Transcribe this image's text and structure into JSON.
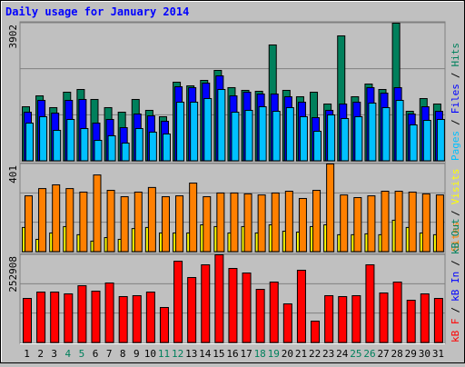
{
  "title": "Daily usage for January 2014",
  "separator": "/",
  "categories": [
    "1",
    "2",
    "3",
    "4",
    "5",
    "6",
    "7",
    "8",
    "9",
    "10",
    "11",
    "12",
    "13",
    "14",
    "15",
    "16",
    "17",
    "18",
    "19",
    "20",
    "21",
    "22",
    "23",
    "24",
    "25",
    "26",
    "27",
    "28",
    "29",
    "30",
    "31"
  ],
  "category_colors": [
    "#000000",
    "#000000",
    "#000000",
    "#00805c",
    "#00805c",
    "#000000",
    "#000000",
    "#000000",
    "#000000",
    "#000000",
    "#00805c",
    "#00805c",
    "#000000",
    "#000000",
    "#000000",
    "#000000",
    "#000000",
    "#00805c",
    "#00805c",
    "#000000",
    "#000000",
    "#000000",
    "#000000",
    "#000000",
    "#00805c",
    "#00805c",
    "#000000",
    "#000000",
    "#000000",
    "#000000",
    "#000000"
  ],
  "chart_data": [
    {
      "type": "bar",
      "ylim": [
        0,
        3902
      ],
      "yticks": [
        3902
      ],
      "grid": true,
      "series": [
        {
          "name": "Pages",
          "color": "#00c0ff",
          "values": [
            1078,
            1258,
            873,
            1181,
            924,
            590,
            719,
            513,
            924,
            822,
            770,
            1669,
            1669,
            1772,
            2028,
            1386,
            1438,
            1540,
            1412,
            1515,
            1258,
            847,
            1309,
            1207,
            1258,
            1643,
            1515,
            1720,
            1027,
            1155,
            1181
          ]
        },
        {
          "name": "Files",
          "color": "#0000ff",
          "values": [
            1386,
            1720,
            1360,
            1720,
            1746,
            1078,
            1181,
            950,
            1335,
            1284,
            1130,
            2105,
            2080,
            2208,
            2413,
            1848,
            1951,
            1900,
            1900,
            1823,
            1669,
            1232,
            1438,
            1617,
            1669,
            2080,
            1925,
            2080,
            1335,
            1540,
            1412
          ]
        },
        {
          "name": "Hits",
          "color": "#00805c",
          "values": [
            1540,
            1848,
            1515,
            1951,
            2028,
            1746,
            1515,
            1386,
            1746,
            1438,
            1258,
            2234,
            2131,
            2285,
            2567,
            2080,
            2003,
            1977,
            3286,
            2003,
            1823,
            1951,
            1617,
            3543,
            1823,
            2182,
            2028,
            3902,
            1412,
            1771,
            1617
          ]
        }
      ]
    },
    {
      "type": "bar",
      "ylim": [
        0,
        401
      ],
      "yticks": [
        401
      ],
      "grid": true,
      "series": [
        {
          "name": "Sites",
          "color": "#ff8000",
          "values": [
            256,
            289,
            306,
            289,
            273,
            351,
            281,
            252,
            273,
            294,
            252,
            256,
            314,
            252,
            269,
            269,
            265,
            260,
            269,
            277,
            244,
            281,
            401,
            260,
            248,
            256,
            277,
            277,
            273,
            265,
            260
          ]
        },
        {
          "name": "Visits",
          "color": "#ffff00",
          "values": [
            112,
            58,
            87,
            116,
            79,
            50,
            66,
            58,
            107,
            112,
            87,
            87,
            87,
            124,
            116,
            87,
            116,
            87,
            124,
            95,
            91,
            116,
            124,
            79,
            79,
            83,
            79,
            145,
            112,
            87,
            79
          ]
        }
      ]
    },
    {
      "type": "bar",
      "ylim": [
        0,
        252908
      ],
      "yticks": [
        252908
      ],
      "grid": true,
      "series": [
        {
          "name": "kB F",
          "color": "#ff0000",
          "values": [
            127700,
            146000,
            146000,
            140800,
            164200,
            148600,
            172000,
            133000,
            135600,
            146000,
            101700,
            234600,
            187700,
            224200,
            252908,
            213800,
            200700,
            153800,
            174700,
            112100,
            208600,
            62600,
            135600,
            133000,
            135600,
            224200,
            143400,
            174700,
            122500,
            140800,
            127700
          ]
        }
      ],
      "legend_extra": [
        {
          "name": "kB In",
          "color": "#0000ff"
        },
        {
          "name": "kB Out",
          "color": "#00805c"
        }
      ]
    }
  ]
}
